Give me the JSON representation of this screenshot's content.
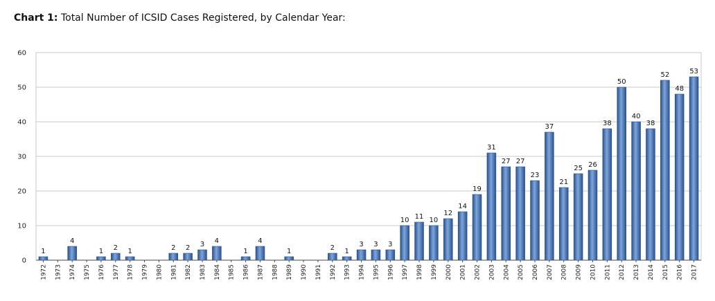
{
  "title_prefix": "Chart 1:",
  "title_rest": " Total Number of ICSID Cases Registered, by Calendar Year:",
  "colors": {
    "bar": "#3f6fb0",
    "bar_dark": "#2a528c",
    "bar_light": "#7ea5dc",
    "grid": "#c8c8c8",
    "axis": "#444444"
  },
  "chart_data": {
    "type": "bar",
    "title": "Chart 1: Total Number of ICSID Cases Registered, by Calendar Year:",
    "xlabel": "",
    "ylabel": "",
    "ylim": [
      0,
      60
    ],
    "yticks": [
      0,
      10,
      20,
      30,
      40,
      50,
      60
    ],
    "grid": true,
    "legend": "none",
    "categories": [
      "1972",
      "1973",
      "1974",
      "1975",
      "1976",
      "1977",
      "1978",
      "1979",
      "1980",
      "1981",
      "1982",
      "1983",
      "1984",
      "1985",
      "1986",
      "1987",
      "1988",
      "1989",
      "1990",
      "1991",
      "1992",
      "1993",
      "1994",
      "1995",
      "1996",
      "1997",
      "1998",
      "1999",
      "2000",
      "2001",
      "2002",
      "2003",
      "2004",
      "2005",
      "2006",
      "2007",
      "2008",
      "2009",
      "2010",
      "2011",
      "2012",
      "2013",
      "2014",
      "2015",
      "2016",
      "2017"
    ],
    "values": [
      1,
      0,
      4,
      0,
      1,
      2,
      1,
      0,
      0,
      2,
      2,
      3,
      4,
      0,
      1,
      4,
      0,
      1,
      0,
      0,
      2,
      1,
      3,
      3,
      3,
      10,
      11,
      10,
      12,
      14,
      19,
      31,
      27,
      27,
      23,
      37,
      21,
      25,
      26,
      38,
      50,
      40,
      38,
      52,
      48,
      53
    ]
  }
}
